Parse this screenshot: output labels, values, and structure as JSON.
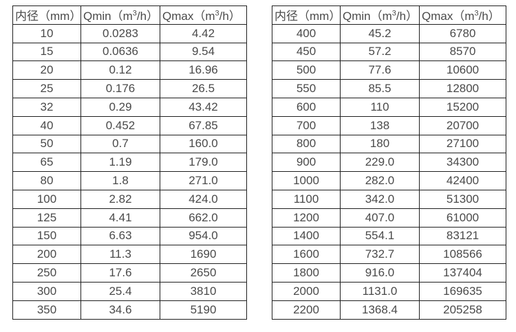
{
  "colors": {
    "background": "#ffffff",
    "border": "#1f1f1f",
    "text": "#4a4a4a"
  },
  "tables": [
    {
      "headers": [
        "内径（mm）",
        "Qmin（m³/h）",
        "Qmax（m³/h）"
      ],
      "rows": [
        [
          "10",
          "0.0283",
          "4.42"
        ],
        [
          "15",
          "0.0636",
          "9.54"
        ],
        [
          "20",
          "0.12",
          "16.96"
        ],
        [
          "25",
          "0.176",
          "26.5"
        ],
        [
          "32",
          "0.29",
          "43.42"
        ],
        [
          "40",
          "0.452",
          "67.85"
        ],
        [
          "50",
          "0.7",
          "160.0"
        ],
        [
          "65",
          "1.19",
          "179.0"
        ],
        [
          "80",
          "1.8",
          "271.0"
        ],
        [
          "100",
          "2.82",
          "424.0"
        ],
        [
          "125",
          "4.41",
          "662.0"
        ],
        [
          "150",
          "6.63",
          "954.0"
        ],
        [
          "200",
          "11.3",
          "1690"
        ],
        [
          "250",
          "17.6",
          "2650"
        ],
        [
          "300",
          "25.4",
          "3810"
        ],
        [
          "350",
          "34.6",
          "5190"
        ]
      ]
    },
    {
      "headers": [
        "内径（mm）",
        "Qmin（m³/h）",
        "Qmax（m³/h）"
      ],
      "rows": [
        [
          "400",
          "45.2",
          "6780"
        ],
        [
          "450",
          "57.2",
          "8570"
        ],
        [
          "500",
          "77.6",
          "10600"
        ],
        [
          "550",
          "85.5",
          "12800"
        ],
        [
          "600",
          "110",
          "15200"
        ],
        [
          "700",
          "138",
          "20700"
        ],
        [
          "800",
          "180",
          "27100"
        ],
        [
          "900",
          "229.0",
          "34300"
        ],
        [
          "1000",
          "282.0",
          "42400"
        ],
        [
          "1100",
          "342.0",
          "51300"
        ],
        [
          "1200",
          "407.0",
          "61000"
        ],
        [
          "1400",
          "554.1",
          "83121"
        ],
        [
          "1600",
          "732.7",
          "108566"
        ],
        [
          "1800",
          "916.0",
          "137404"
        ],
        [
          "2000",
          "1131.0",
          "169635"
        ],
        [
          "2200",
          "1368.4",
          "205258"
        ]
      ]
    }
  ]
}
